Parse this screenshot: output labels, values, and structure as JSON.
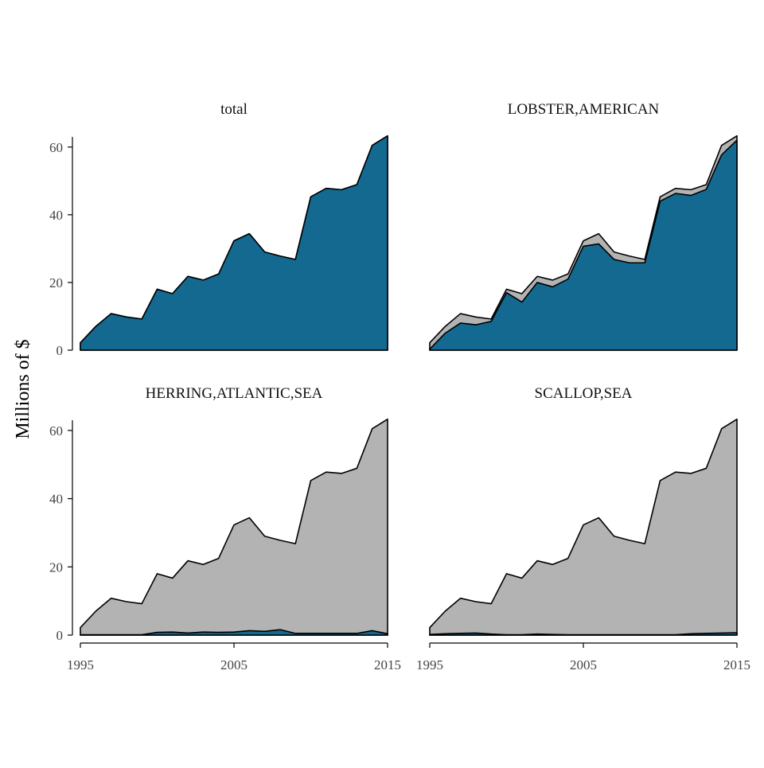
{
  "chart_data": {
    "type": "area",
    "facet_layout": "2x2",
    "ylabel": "Millions of $",
    "xlabel": "",
    "x": [
      1995,
      1996,
      1997,
      1998,
      1999,
      2000,
      2001,
      2002,
      2003,
      2004,
      2005,
      2006,
      2007,
      2008,
      2009,
      2010,
      2011,
      2012,
      2013,
      2014,
      2015
    ],
    "xlim": [
      1995,
      2015
    ],
    "ylim": [
      0,
      63
    ],
    "xticks": [
      1995,
      2005,
      2015
    ],
    "yticks": [
      0,
      20,
      40,
      60
    ],
    "xtick_labels": [
      "1995",
      "2005",
      "2015"
    ],
    "ytick_labels": [
      "0",
      "20",
      "40",
      "60"
    ],
    "colors": {
      "highlight": "#13698F",
      "other": "#B3B3B3",
      "outline": "#000000",
      "axis": "#000000",
      "background": "#FFFFFF"
    },
    "total_values": [
      2.2,
      7.0,
      10.8,
      9.8,
      9.2,
      18.0,
      16.7,
      21.8,
      20.7,
      22.5,
      32.3,
      34.4,
      29.0,
      27.8,
      26.8,
      45.3,
      47.8,
      47.4,
      48.9,
      60.5,
      63.3
    ],
    "panels": [
      {
        "title": "total",
        "highlight_values": [
          2.2,
          7.0,
          10.8,
          9.8,
          9.2,
          18.0,
          16.7,
          21.8,
          20.7,
          22.5,
          32.3,
          34.4,
          29.0,
          27.8,
          26.8,
          45.3,
          47.8,
          47.4,
          48.9,
          60.5,
          63.3
        ]
      },
      {
        "title": "LOBSTER,AMERICAN",
        "highlight_values": [
          0.3,
          5.0,
          8.0,
          7.5,
          8.5,
          17.0,
          14.2,
          20.0,
          18.7,
          21.0,
          30.7,
          31.4,
          26.8,
          25.8,
          25.8,
          44.0,
          46.3,
          45.7,
          47.5,
          57.7,
          62.0
        ]
      },
      {
        "title": "HERRING,ATLANTIC,SEA",
        "highlight_values": [
          0.1,
          0.1,
          0.1,
          0.1,
          0.1,
          0.8,
          0.9,
          0.6,
          0.9,
          0.8,
          0.9,
          1.3,
          1.1,
          1.6,
          0.5,
          0.5,
          0.5,
          0.5,
          0.5,
          1.3,
          0.4
        ]
      },
      {
        "title": "SCALLOP,SEA",
        "highlight_values": [
          0.2,
          0.4,
          0.5,
          0.6,
          0.3,
          0.1,
          0.1,
          0.3,
          0.2,
          0.1,
          0.1,
          0.1,
          0.1,
          0.1,
          0.1,
          0.1,
          0.1,
          0.4,
          0.5,
          0.6,
          0.7
        ]
      }
    ]
  }
}
